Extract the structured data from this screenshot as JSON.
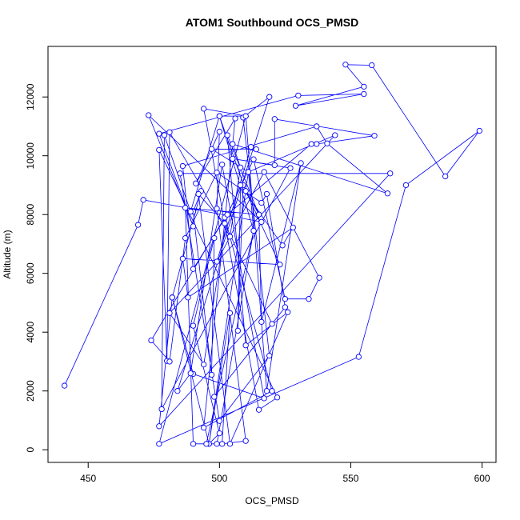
{
  "chart_data": {
    "type": "line",
    "title": "ATOM1 Southbound OCS_PMSD",
    "x_label": "OCS_PMSD",
    "y_label": "Altitude (m)",
    "xlim": [
      434.7,
      605.3
    ],
    "ylim": [
      -430,
      13720
    ],
    "xticks": [
      450,
      500,
      550,
      600
    ],
    "yticks": [
      0,
      2000,
      4000,
      6000,
      8000,
      10000,
      12000
    ],
    "series": [
      {
        "name": "OCS_PMSD",
        "color": "#0000ff",
        "marker": "circle",
        "x": [
          441,
          469,
          471,
          516,
          473,
          490,
          477,
          530,
          555,
          529,
          555,
          548,
          558,
          586,
          599,
          571,
          553,
          477,
          510,
          494,
          515,
          522,
          477,
          480,
          481,
          504,
          508,
          505,
          564,
          541,
          537,
          486,
          490,
          503,
          494,
          481,
          544,
          511,
          496,
          482,
          490,
          517,
          501,
          489,
          484,
          519,
          509,
          519,
          500,
          485,
          565,
          477,
          482,
          493,
          490,
          497,
          498,
          490,
          500,
          496,
          504,
          501,
          510,
          499,
          500,
          491,
          506,
          494,
          520,
          502,
          474,
          481,
          487,
          499,
          516,
          518,
          525,
          498,
          520,
          502,
          492,
          504,
          526,
          510,
          503,
          515,
          509,
          507,
          508,
          524,
          528,
          488,
          486,
          523,
          510,
          500,
          513,
          511,
          497,
          514,
          512,
          499,
          517,
          538,
          534,
          525,
          513,
          503,
          535,
          537,
          559,
          521,
          521,
          505,
          527,
          478,
          479,
          489,
          500,
          510,
          518,
          531,
          516,
          515,
          487,
          490,
          499,
          513,
          495
        ],
        "y": [
          2180,
          7650,
          8500,
          7750,
          11380,
          7600,
          10750,
          12050,
          12100,
          11700,
          12350,
          13100,
          13080,
          9300,
          10850,
          9000,
          3160,
          200,
          11350,
          11600,
          1360,
          1780,
          10200,
          3020,
          10800,
          7250,
          9600,
          10400,
          8720,
          10420,
          11000,
          9650,
          6150,
          8000,
          2900,
          4650,
          10700,
          9450,
          200,
          5180,
          2580,
          1750,
          9700,
          2600,
          2000,
          12000,
          11300,
          3200,
          980,
          9400,
          9400,
          800,
          5180,
          8800,
          8100,
          2550,
          7200,
          4220,
          560,
          200,
          4650,
          200,
          300,
          8200,
          10820,
          9060,
          11270,
          750,
          2000,
          7900,
          3720,
          3000,
          7200,
          9430,
          8400,
          8700,
          4850,
          1800,
          4280,
          7700,
          8700,
          200,
          4680,
          3550,
          10700,
          8000,
          9000,
          4050,
          9000,
          6950,
          7560,
          5180,
          6500,
          6300,
          8800,
          11350,
          7450,
          9450,
          10230,
          10220,
          10300,
          6400,
          9450,
          5850,
          5130,
          5130,
          9880,
          8000,
          10400,
          10400,
          10680,
          11250,
          9680,
          9900,
          9580,
          1380,
          10700,
          8100,
          11350,
          11350,
          2000,
          9750,
          4350,
          8000,
          8230,
          200,
          200,
          7450,
          200
        ]
      }
    ]
  }
}
